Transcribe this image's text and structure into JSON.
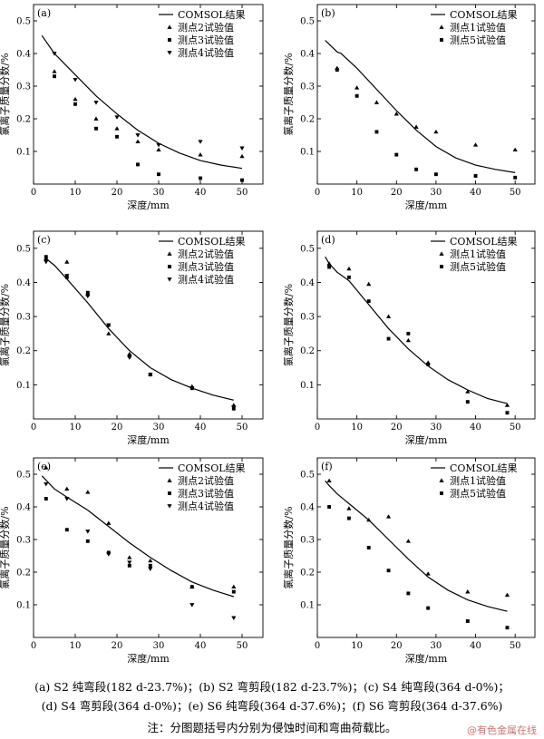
{
  "chart_data": [
    {
      "type": "scatter",
      "panel_label": "(a)",
      "xlabel": "深度/mm",
      "ylabel": "氯离子质量分数/%",
      "xlim": [
        0,
        55
      ],
      "ylim": [
        0,
        0.55
      ],
      "xticks": [
        0,
        10,
        20,
        30,
        40,
        50
      ],
      "yticks": [
        0.1,
        0.2,
        0.3,
        0.4,
        0.5
      ],
      "legend_position": "top-right",
      "line": {
        "name": "COMSOL结果",
        "x": [
          2,
          5,
          10,
          15,
          20,
          25,
          30,
          35,
          40,
          45,
          50
        ],
        "y": [
          0.455,
          0.4,
          0.335,
          0.27,
          0.215,
          0.165,
          0.125,
          0.095,
          0.072,
          0.058,
          0.048
        ]
      },
      "series": [
        {
          "name": "测点2试验值",
          "marker": "triangle-up",
          "x": [
            5,
            10,
            15,
            20,
            25,
            30,
            40,
            50
          ],
          "y": [
            0.345,
            0.26,
            0.2,
            0.17,
            0.13,
            0.105,
            0.09,
            0.085
          ]
        },
        {
          "name": "测点3试验值",
          "marker": "square",
          "x": [
            5,
            10,
            15,
            20,
            25,
            30,
            40,
            50
          ],
          "y": [
            0.33,
            0.245,
            0.17,
            0.145,
            0.06,
            0.03,
            0.018,
            0.012
          ]
        },
        {
          "name": "测点4试验值",
          "marker": "triangle-down",
          "x": [
            5,
            10,
            15,
            20,
            25,
            30,
            40,
            50
          ],
          "y": [
            0.4,
            0.32,
            0.25,
            0.205,
            0.15,
            0.12,
            0.13,
            0.11
          ]
        }
      ]
    },
    {
      "type": "scatter",
      "panel_label": "(b)",
      "xlabel": "深度/mm",
      "ylabel": "氯离子质量分数/%",
      "xlim": [
        0,
        55
      ],
      "ylim": [
        0,
        0.55
      ],
      "xticks": [
        0,
        10,
        20,
        30,
        40,
        50
      ],
      "yticks": [
        0.1,
        0.2,
        0.3,
        0.4,
        0.5
      ],
      "legend_position": "top-right",
      "line": {
        "name": "COMSOL结果",
        "x": [
          2,
          5,
          6,
          10,
          15,
          20,
          25,
          30,
          35,
          40,
          45,
          50
        ],
        "y": [
          0.44,
          0.405,
          0.4,
          0.355,
          0.29,
          0.225,
          0.165,
          0.115,
          0.08,
          0.058,
          0.045,
          0.035
        ]
      },
      "series": [
        {
          "name": "测点1试验值",
          "marker": "triangle-up",
          "x": [
            5,
            10,
            15,
            20,
            25,
            30,
            40,
            50
          ],
          "y": [
            0.355,
            0.295,
            0.25,
            0.215,
            0.175,
            0.16,
            0.12,
            0.105
          ]
        },
        {
          "name": "测点5试验值",
          "marker": "square",
          "x": [
            5,
            10,
            15,
            20,
            25,
            30,
            40,
            50
          ],
          "y": [
            0.35,
            0.27,
            0.16,
            0.09,
            0.045,
            0.03,
            0.025,
            0.02
          ]
        }
      ]
    },
    {
      "type": "scatter",
      "panel_label": "(c)",
      "xlabel": "深度/mm",
      "ylabel": "氯离子质量分数/%",
      "xlim": [
        0,
        55
      ],
      "ylim": [
        0,
        0.55
      ],
      "xticks": [
        0,
        10,
        20,
        30,
        40,
        50
      ],
      "yticks": [
        0.1,
        0.2,
        0.3,
        0.4,
        0.5
      ],
      "legend_position": "top-right",
      "line": {
        "name": "COMSOL结果",
        "x": [
          3,
          5,
          8,
          13,
          18,
          23,
          28,
          33,
          38,
          43,
          48
        ],
        "y": [
          0.47,
          0.45,
          0.41,
          0.34,
          0.265,
          0.2,
          0.15,
          0.115,
          0.09,
          0.07,
          0.055
        ]
      },
      "series": [
        {
          "name": "测点2试验值",
          "marker": "triangle-up",
          "x": [
            3,
            8,
            13,
            18,
            23,
            28,
            38,
            48
          ],
          "y": [
            0.47,
            0.46,
            0.365,
            0.25,
            0.19,
            0.13,
            0.095,
            0.04
          ]
        },
        {
          "name": "测点3试验值",
          "marker": "square",
          "x": [
            3,
            8,
            13,
            18,
            23,
            28,
            38,
            48
          ],
          "y": [
            0.475,
            0.415,
            0.37,
            0.275,
            0.185,
            0.13,
            0.09,
            0.03
          ]
        },
        {
          "name": "测点4试验值",
          "marker": "triangle-down",
          "x": [
            3,
            8,
            13,
            18,
            23,
            28,
            38,
            48
          ],
          "y": [
            0.46,
            0.42,
            0.36,
            0.275,
            0.18,
            0.13,
            0.09,
            0.035
          ]
        }
      ]
    },
    {
      "type": "scatter",
      "panel_label": "(d)",
      "xlabel": "深度/mm",
      "ylabel": "氯离子质量分数/%",
      "xlim": [
        0,
        55
      ],
      "ylim": [
        0,
        0.55
      ],
      "xticks": [
        0,
        10,
        20,
        30,
        40,
        50
      ],
      "yticks": [
        0.1,
        0.2,
        0.3,
        0.4,
        0.5
      ],
      "legend_position": "top-right",
      "line": {
        "name": "COMSOL结果",
        "x": [
          2,
          3,
          5,
          8,
          13,
          18,
          23,
          28,
          33,
          38,
          43,
          48
        ],
        "y": [
          0.475,
          0.455,
          0.43,
          0.405,
          0.335,
          0.265,
          0.205,
          0.155,
          0.115,
          0.085,
          0.06,
          0.045
        ]
      },
      "series": [
        {
          "name": "测点1试验值",
          "marker": "triangle-up",
          "x": [
            3,
            8,
            13,
            18,
            23,
            28,
            38,
            48
          ],
          "y": [
            0.455,
            0.44,
            0.395,
            0.3,
            0.23,
            0.165,
            0.08,
            0.04
          ]
        },
        {
          "name": "测点5试验值",
          "marker": "square",
          "x": [
            3,
            8,
            13,
            18,
            23,
            28,
            38,
            48
          ],
          "y": [
            0.445,
            0.415,
            0.345,
            0.235,
            0.25,
            0.16,
            0.05,
            0.018
          ]
        }
      ]
    },
    {
      "type": "scatter",
      "panel_label": "(e)",
      "xlabel": "深度/mm",
      "ylabel": "氯离子质量分数/%",
      "xlim": [
        0,
        55
      ],
      "ylim": [
        0,
        0.55
      ],
      "xticks": [
        0,
        10,
        20,
        30,
        40,
        50
      ],
      "yticks": [
        0.1,
        0.2,
        0.3,
        0.4,
        0.5
      ],
      "legend_position": "top-right",
      "line": {
        "name": "COMSOL结果",
        "x": [
          2,
          5,
          8,
          13,
          18,
          23,
          28,
          33,
          38,
          43,
          48
        ],
        "y": [
          0.495,
          0.455,
          0.43,
          0.39,
          0.34,
          0.29,
          0.245,
          0.205,
          0.17,
          0.145,
          0.125
        ]
      },
      "series": [
        {
          "name": "测点2试验值",
          "marker": "triangle-up",
          "x": [
            3,
            8,
            13,
            18,
            23,
            28,
            38,
            48
          ],
          "y": [
            0.52,
            0.455,
            0.445,
            0.35,
            0.245,
            0.235,
            0.155,
            0.155
          ]
        },
        {
          "name": "测点3试验值",
          "marker": "square",
          "x": [
            3,
            8,
            13,
            18,
            23,
            28,
            38,
            48
          ],
          "y": [
            0.425,
            0.33,
            0.295,
            0.26,
            0.22,
            0.22,
            0.155,
            0.14
          ]
        },
        {
          "name": "测点4试验值",
          "marker": "triangle-down",
          "x": [
            3,
            8,
            13,
            18,
            23,
            28,
            38,
            48
          ],
          "y": [
            0.47,
            0.425,
            0.325,
            0.255,
            0.23,
            0.21,
            0.1,
            0.06
          ]
        }
      ]
    },
    {
      "type": "scatter",
      "panel_label": "(f)",
      "xlabel": "深度/mm",
      "ylabel": "氯离子质量分数/%",
      "xlim": [
        0,
        55
      ],
      "ylim": [
        0,
        0.55
      ],
      "xticks": [
        0,
        10,
        20,
        30,
        40,
        50
      ],
      "yticks": [
        0.1,
        0.2,
        0.3,
        0.4,
        0.5
      ],
      "legend_position": "top-right",
      "line": {
        "name": "COMSOL结果",
        "x": [
          2,
          3,
          5,
          8,
          13,
          18,
          23,
          28,
          33,
          38,
          43,
          48
        ],
        "y": [
          0.48,
          0.465,
          0.44,
          0.41,
          0.36,
          0.3,
          0.24,
          0.185,
          0.145,
          0.115,
          0.095,
          0.08
        ]
      },
      "series": [
        {
          "name": "测点1试验值",
          "marker": "triangle-up",
          "x": [
            3,
            8,
            13,
            18,
            23,
            28,
            38,
            48
          ],
          "y": [
            0.48,
            0.395,
            0.36,
            0.37,
            0.295,
            0.195,
            0.14,
            0.13
          ]
        },
        {
          "name": "测点5试验值",
          "marker": "square",
          "x": [
            3,
            8,
            13,
            18,
            23,
            28,
            38,
            48
          ],
          "y": [
            0.4,
            0.365,
            0.275,
            0.205,
            0.135,
            0.09,
            0.05,
            0.03
          ]
        }
      ]
    }
  ],
  "caption": {
    "line1": "(a) S2 纯弯段(182 d-23.7%)；(b) S2 弯剪段(182 d-23.7%)；(c) S4 纯弯段(364 d-0%)；",
    "line2": "(d) S4 弯剪段(364 d-0%)；(e) S6 纯弯段(364 d-37.6%)；(f) S6 弯剪段(364 d-37.6%)",
    "note": "注：分图题括号内分别为侵蚀时间和弯曲荷载比。"
  },
  "watermark": "@有色金属在线"
}
